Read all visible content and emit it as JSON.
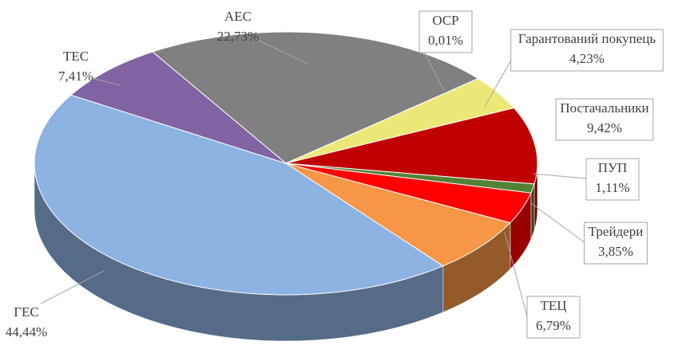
{
  "chart_data": {
    "type": "pie3d",
    "categories": [
      "АЕС",
      "ОСР",
      "Гарантований покупець",
      "Постачальники",
      "ПУП",
      "Трейдери",
      "ТЕЦ",
      "ГЕС",
      "ТЕС"
    ],
    "values": [
      22.73,
      0.01,
      4.23,
      9.42,
      1.11,
      3.85,
      6.79,
      44.44,
      7.41
    ],
    "value_labels": [
      "22,73%",
      "0,01%",
      "4,23%",
      "9,42%",
      "1,11%",
      "3,85%",
      "6,79%",
      "44,44%",
      "7,41%"
    ],
    "colors": [
      "#808080",
      "#5b9bd5",
      "#ebe878",
      "#c00000",
      "#548235",
      "#ff0000",
      "#f79646",
      "#8db3e2",
      "#8064a2"
    ]
  }
}
